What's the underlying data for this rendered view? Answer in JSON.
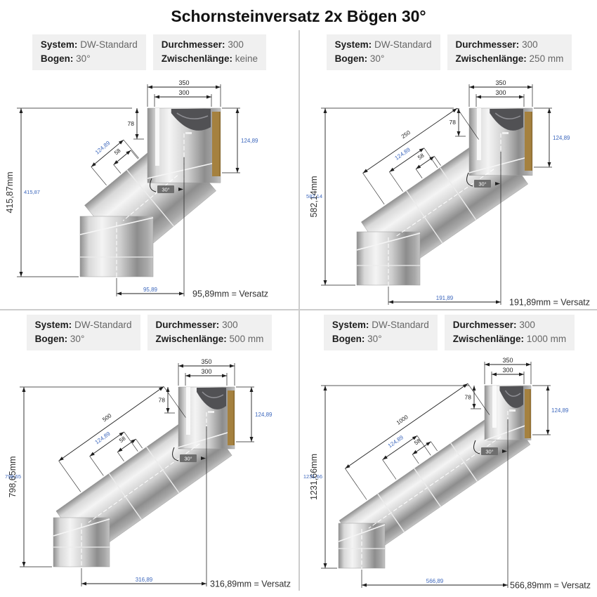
{
  "title": "Schornsteinversatz 2x Bögen 30°",
  "colors": {
    "blue": "#3e68bd",
    "brown": "#a5813f",
    "brown_edge": "#8a6a31",
    "dim_line": "#1f1f1f",
    "divider": "#cccccc",
    "header_bg": "#f0f0f0",
    "badge_bg": "#6e6e6e",
    "text_dark": "#333333"
  },
  "quadrants": [
    {
      "header": {
        "system_label": "System:",
        "system_value": "DW-Standard",
        "bogen_label": "Bogen:",
        "bogen_value": "30°",
        "durchmesser_label": "Durchmesser:",
        "durchmesser_value": "300",
        "zwischenlaenge_label": "Zwischenlänge:",
        "zwischenlaenge_value": "keine"
      },
      "dims": {
        "top_outer": "350",
        "top_inner": "300",
        "seg78": "78",
        "seg58": "58",
        "diag_blue": "124,89",
        "right_blue": "124,89",
        "angle": "30°",
        "zwischen": "",
        "height_label": "415,87mm",
        "height_blue": "415,87",
        "offset_blue": "95,89",
        "offset_text": "95,89mm = Versatz"
      }
    },
    {
      "header": {
        "system_label": "System:",
        "system_value": "DW-Standard",
        "bogen_label": "Bogen:",
        "bogen_value": "30°",
        "durchmesser_label": "Durchmesser:",
        "durchmesser_value": "300",
        "zwischenlaenge_label": "Zwischenlänge:",
        "zwischenlaenge_value": "250 mm"
      },
      "dims": {
        "top_outer": "350",
        "top_inner": "300",
        "seg78": "78",
        "seg58": "58",
        "diag_blue": "124,89",
        "right_blue": "124,89",
        "angle": "30°",
        "zwischen": "250",
        "height_label": "582,14mm",
        "height_blue": "582,14",
        "offset_blue": "191,89",
        "offset_text": "191,89mm = Versatz"
      }
    },
    {
      "header": {
        "system_label": "System:",
        "system_value": "DW-Standard",
        "bogen_label": "Bogen:",
        "bogen_value": "30°",
        "durchmesser_label": "Durchmesser:",
        "durchmesser_value": "300",
        "zwischenlaenge_label": "Zwischenlänge:",
        "zwischenlaenge_value": "500 mm"
      },
      "dims": {
        "top_outer": "350",
        "top_inner": "300",
        "seg78": "78",
        "seg58": "58",
        "diag_blue": "124,89",
        "right_blue": "124,89",
        "angle": "30°",
        "zwischen": "500",
        "height_label": "798,65mm",
        "height_blue": "798,65",
        "offset_blue": "316,89",
        "offset_text": "316,89mm = Versatz"
      }
    },
    {
      "header": {
        "system_label": "System:",
        "system_value": "DW-Standard",
        "bogen_label": "Bogen:",
        "bogen_value": "30°",
        "durchmesser_label": "Durchmesser:",
        "durchmesser_value": "300",
        "zwischenlaenge_label": "Zwischenlänge:",
        "zwischenlaenge_value": "1000 mm"
      },
      "dims": {
        "top_outer": "350",
        "top_inner": "300",
        "seg78": "78",
        "seg58": "58",
        "diag_blue": "124,89",
        "right_blue": "124,89",
        "angle": "30°",
        "zwischen": "1000",
        "height_label": "1231,66mm",
        "height_blue": "1231,66",
        "offset_blue": "566,89",
        "offset_text": "566,89mm = Versatz"
      }
    }
  ]
}
